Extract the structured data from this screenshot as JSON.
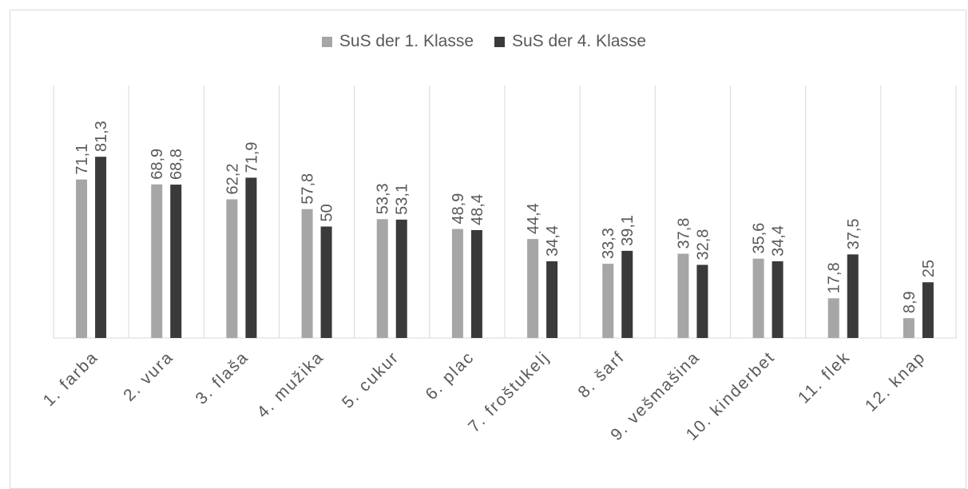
{
  "colors": {
    "series1": "#a6a6a6",
    "series2": "#3a3a3a",
    "grid": "#d9d9d9",
    "text": "#595959"
  },
  "chart_data": {
    "type": "bar",
    "categories": [
      "1. farba",
      "2. vura",
      "3. flaša",
      "4. mužika",
      "5. cukur",
      "6. plac",
      "7. froštukelj",
      "8. šarf",
      "9. vešmašina",
      "10. kinderbet",
      "11. flek",
      "12. knap"
    ],
    "series": [
      {
        "name": "SuS der 1. Klasse",
        "values": [
          71.1,
          68.9,
          62.2,
          57.8,
          53.3,
          48.9,
          44.4,
          33.3,
          37.8,
          35.6,
          17.8,
          8.9
        ],
        "labels": [
          "71,1",
          "68,9",
          "62,2",
          "57,8",
          "53,3",
          "48,9",
          "44,4",
          "33,3",
          "37,8",
          "35,6",
          "17,8",
          "8,9"
        ]
      },
      {
        "name": "SuS der 4. Klasse",
        "values": [
          81.3,
          68.8,
          71.9,
          50,
          53.1,
          48.4,
          34.4,
          39.1,
          32.8,
          34.4,
          37.5,
          25
        ],
        "labels": [
          "81,3",
          "68,8",
          "71,9",
          "50",
          "53,1",
          "48,4",
          "34,4",
          "39,1",
          "32,8",
          "34,4",
          "37,5",
          "25"
        ]
      }
    ],
    "title": "",
    "xlabel": "",
    "ylabel": "",
    "ylim": [
      0,
      100
    ],
    "grid": "vertical separators between categories",
    "legend": "top-center"
  }
}
